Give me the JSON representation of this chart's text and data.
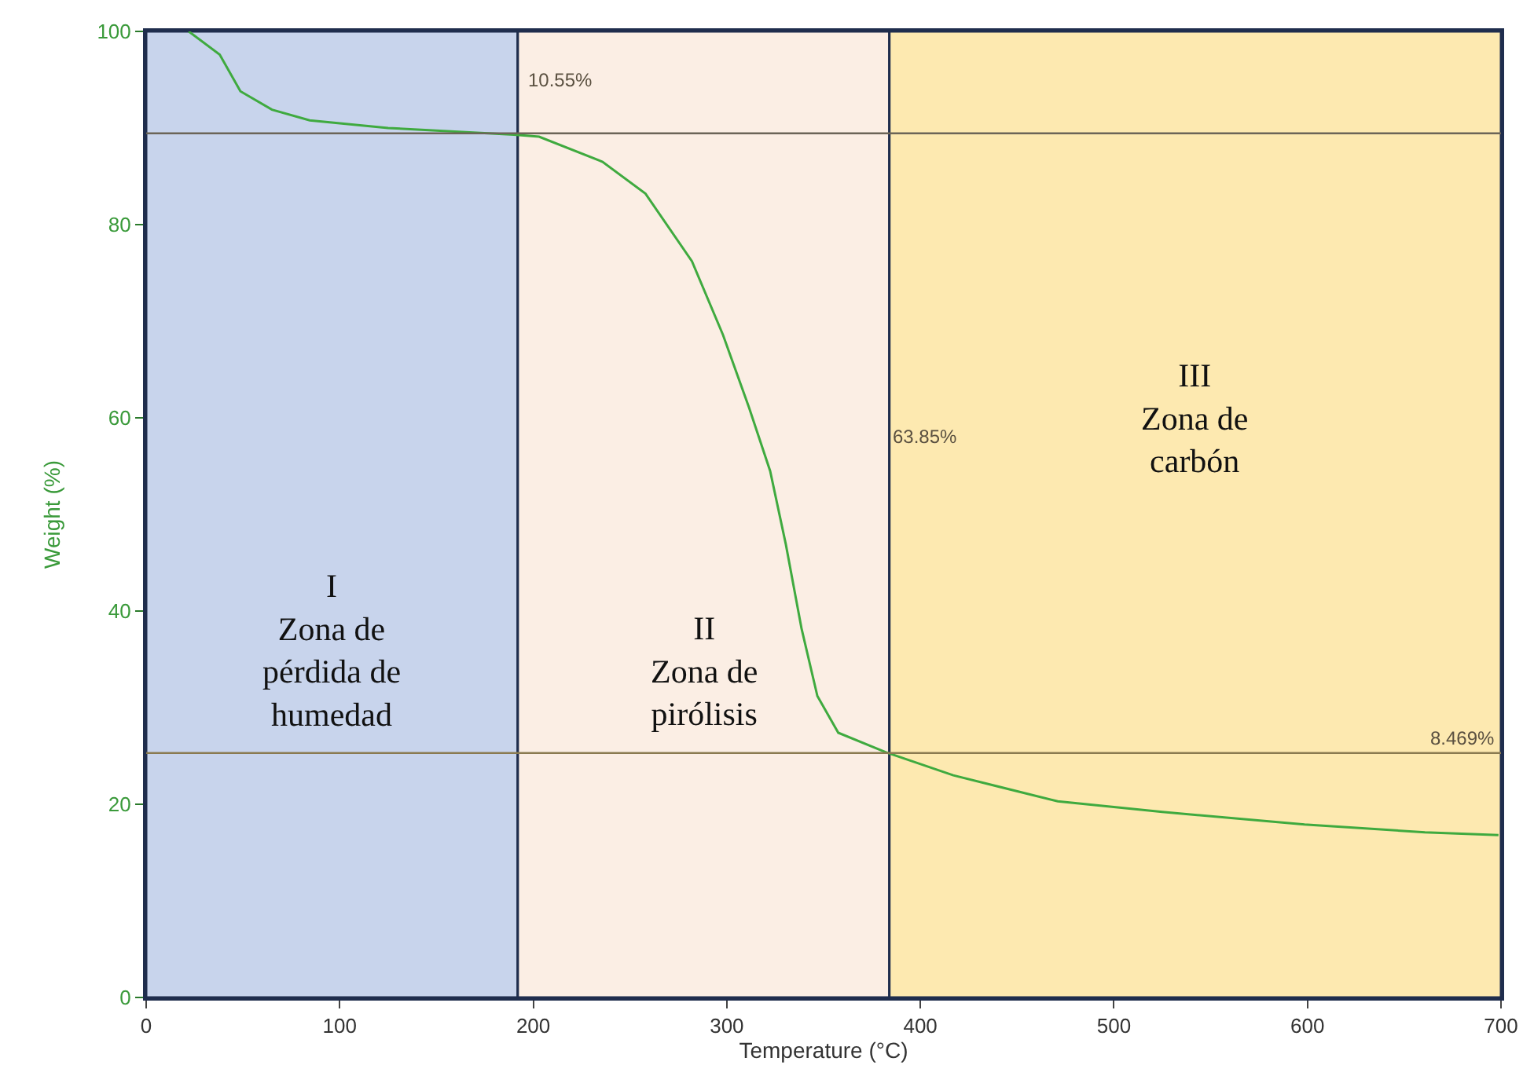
{
  "chart_data": {
    "type": "line",
    "xlabel": "Temperature (°C)",
    "ylabel": "Weight (%)",
    "x": [
      22,
      38,
      48.7,
      65,
      84.5,
      125,
      190,
      203,
      235.8,
      258,
      282,
      298,
      311.6,
      322.4,
      330.5,
      338.6,
      346.8,
      357.6,
      382,
      417,
      471,
      525,
      598.5,
      660.7,
      698.7
    ],
    "series": [
      {
        "color": "#3faa3f",
        "values": [
          100,
          97.6,
          93.8,
          91.9,
          90.8,
          90.0,
          89.3,
          89.1,
          86.5,
          83.2,
          76.2,
          68.6,
          61.0,
          54.5,
          46.9,
          38.2,
          31.2,
          27.4,
          25.4,
          23.0,
          20.3,
          19.2,
          17.9,
          17.1,
          16.8
        ]
      }
    ],
    "xlim": [
      0,
      700
    ],
    "xticks": [
      0,
      100,
      200,
      300,
      400,
      500,
      600,
      700
    ],
    "ylim": [
      0,
      100
    ],
    "yticks": [
      0,
      20,
      40,
      60,
      80,
      100
    ],
    "grid": false,
    "marker": "none",
    "line_style": "solid",
    "bands": [
      {
        "axis": "x",
        "from": 0,
        "to": 192,
        "color": "#c8d4ec",
        "label": "I\nZona de\npérdida de\nhumedad"
      },
      {
        "axis": "x",
        "from": 192,
        "to": 384,
        "color": "#fbeee4",
        "label": "II\nZona de\npirólisis"
      },
      {
        "axis": "x",
        "from": 384,
        "to": 700,
        "color": "#fde9b0",
        "label": "III\nZona de\ncarbón"
      }
    ],
    "ref_lines": [
      {
        "axis": "y",
        "value": 89.45,
        "color": "#6b6457"
      },
      {
        "axis": "y",
        "value": 25.3,
        "color": "#8a7a50"
      }
    ],
    "annotations": [
      {
        "text": "10.55%",
        "x": 196,
        "y": 95
      },
      {
        "text": "63.85%",
        "x": 384,
        "y": 58
      },
      {
        "text": "8.469%",
        "x": 698,
        "y": 25.3
      }
    ]
  }
}
